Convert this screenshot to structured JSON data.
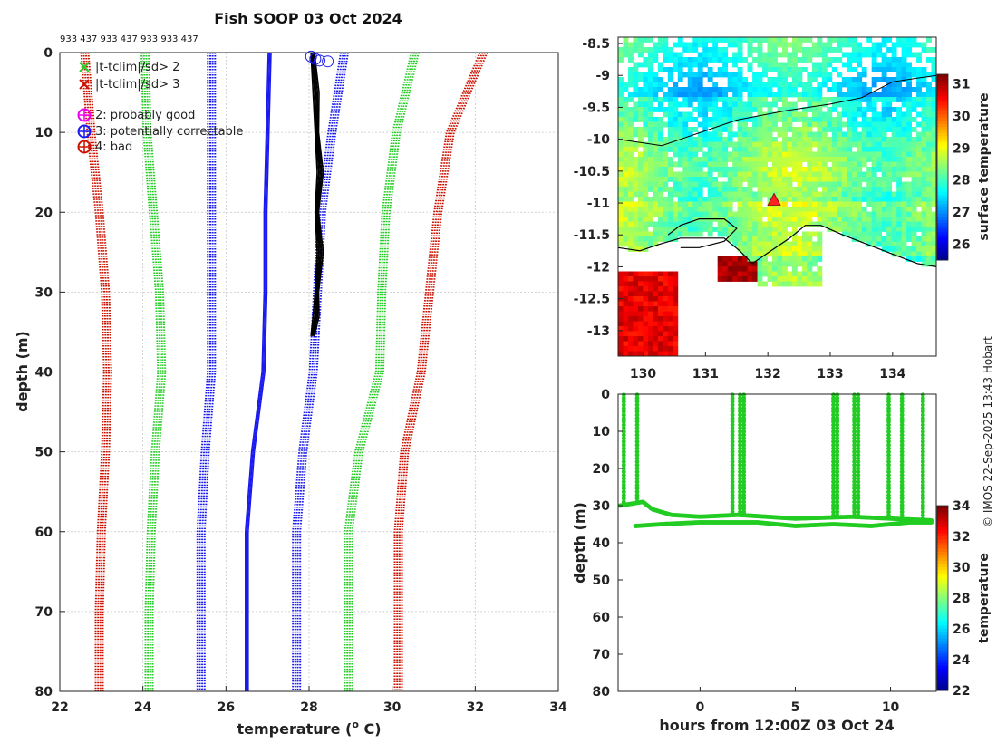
{
  "title": "Fish SOOP 03 Oct 2024",
  "ids_label": "933 437 933 437 933 933 437",
  "credit": "© IMOS 22-Sep-2025 13:43 Hobart",
  "colors": {
    "green": "#22cc22",
    "red": "#cc1100",
    "blue": "#1a1aee",
    "black": "#000000",
    "magenta": "#ee00ee"
  },
  "chart_data": [
    {
      "type": "line",
      "name": "profile",
      "xlabel_main": "temperature (",
      "xlabel_sup": "o",
      "xlabel_end": " C)",
      "ylabel": "depth (m)",
      "xlim": [
        22,
        34
      ],
      "ylim": [
        80,
        0
      ],
      "xticks": [
        "22",
        "24",
        "26",
        "28",
        "30",
        "32",
        "34"
      ],
      "yticks": [
        "0",
        "10",
        "20",
        "30",
        "40",
        "50",
        "60",
        "70",
        "80"
      ],
      "legend": [
        {
          "marker": "x",
          "color": "green",
          "text": "|t-tclim|/sd> 2"
        },
        {
          "marker": "x",
          "color": "red",
          "text": "|t-tclim|/sd> 3"
        },
        {
          "marker": "o",
          "color": "magenta",
          "text": "2: probably good"
        },
        {
          "marker": "o",
          "color": "blue",
          "text": "3: potentially correctable"
        },
        {
          "marker": "o",
          "color": "red",
          "text": "4: bad"
        }
      ],
      "series": [
        {
          "name": "clim-3sd-low",
          "color": "red",
          "style": "dotted",
          "depth": [
            0,
            10,
            20,
            30,
            40,
            50,
            60,
            70,
            80
          ],
          "temp": [
            22.6,
            22.75,
            22.95,
            23.1,
            23.15,
            23.1,
            23.0,
            22.95,
            22.95
          ]
        },
        {
          "name": "clim-2sd-low",
          "color": "green",
          "style": "dotted",
          "depth": [
            0,
            10,
            20,
            30,
            40,
            50,
            60,
            70,
            80
          ],
          "temp": [
            24.05,
            24.1,
            24.25,
            24.4,
            24.45,
            24.3,
            24.2,
            24.15,
            24.15
          ]
        },
        {
          "name": "clim-1sd-low",
          "color": "blue",
          "style": "dotted",
          "depth": [
            0,
            10,
            20,
            30,
            40,
            50,
            60,
            70,
            80
          ],
          "temp": [
            25.65,
            25.65,
            25.65,
            25.65,
            25.65,
            25.5,
            25.4,
            25.4,
            25.4
          ]
        },
        {
          "name": "clim-mean",
          "color": "blue",
          "style": "solid",
          "depth": [
            0,
            10,
            20,
            30,
            40,
            50,
            60,
            70,
            80
          ],
          "temp": [
            27.05,
            27.0,
            26.95,
            26.95,
            26.9,
            26.65,
            26.5,
            26.5,
            26.5
          ]
        },
        {
          "name": "clim-1sd-high",
          "color": "blue",
          "style": "dotted",
          "depth": [
            0,
            10,
            20,
            30,
            40,
            50,
            60,
            70,
            80
          ],
          "temp": [
            28.85,
            28.55,
            28.3,
            28.2,
            28.1,
            27.85,
            27.7,
            27.7,
            27.7
          ]
        },
        {
          "name": "clim-2sd-high",
          "color": "green",
          "style": "dotted",
          "depth": [
            0,
            10,
            20,
            30,
            40,
            50,
            60,
            70,
            80
          ],
          "temp": [
            30.55,
            30.1,
            29.85,
            29.75,
            29.7,
            29.2,
            28.95,
            28.95,
            28.95
          ]
        },
        {
          "name": "clim-3sd-high",
          "color": "red",
          "style": "dotted",
          "depth": [
            0,
            10,
            20,
            30,
            40,
            50,
            60,
            70,
            80
          ],
          "temp": [
            32.2,
            31.4,
            31.1,
            30.9,
            30.7,
            30.3,
            30.15,
            30.15,
            30.15
          ]
        },
        {
          "name": "observed",
          "color": "black",
          "style": "solid",
          "depth": [
            0,
            5,
            10,
            15,
            20,
            25,
            30,
            33,
            35.5
          ],
          "temp": [
            28.1,
            28.15,
            28.2,
            28.25,
            28.2,
            28.25,
            28.2,
            28.15,
            28.1
          ]
        }
      ],
      "flags": [
        {
          "temp": 28.05,
          "depth": 0.5
        },
        {
          "temp": 28.15,
          "depth": 0.8
        },
        {
          "temp": 28.25,
          "depth": 1.0
        },
        {
          "temp": 28.45,
          "depth": 1.1
        }
      ]
    },
    {
      "type": "heatmap",
      "name": "surface-temperature-map",
      "xlim": [
        129.6,
        134.7
      ],
      "ylim": [
        -13.4,
        -8.4
      ],
      "xticks": [
        "130",
        "131",
        "132",
        "133",
        "134"
      ],
      "yticks": [
        "-8.5",
        "-9",
        "-9.5",
        "-10",
        "-10.5",
        "-11",
        "-11.5",
        "-12",
        "-12.5",
        "-13"
      ],
      "colorbar_label": "surface temperature",
      "colorbar_range": [
        25.5,
        31.3
      ],
      "colorbar_ticks": [
        "26",
        "27",
        "28",
        "29",
        "30",
        "31"
      ],
      "position_marker": {
        "lon": 132.1,
        "lat": -10.95
      }
    },
    {
      "type": "scatter",
      "name": "depth-time",
      "xlabel": "hours from 12:00Z 03 Oct 24",
      "ylabel": "depth (m)",
      "xlim": [
        -4.3,
        12.4
      ],
      "ylim": [
        80,
        0
      ],
      "xticks": [
        "0",
        "5",
        "10"
      ],
      "yticks": [
        "0",
        "10",
        "20",
        "30",
        "40",
        "50",
        "60",
        "70",
        "80"
      ],
      "colorbar_label": "temperature",
      "colorbar_range": [
        22,
        34
      ],
      "colorbar_ticks": [
        "22",
        "24",
        "26",
        "28",
        "30",
        "32",
        "34"
      ],
      "casts": [
        -4.0,
        -3.3,
        1.7,
        2.1,
        2.3,
        7.0,
        7.2,
        8.1,
        8.3,
        9.9,
        10.6,
        11.7
      ],
      "bottom_line": {
        "hours": [
          -4.2,
          -3.0,
          -2.5,
          -1.5,
          0,
          2.0,
          5.0,
          8.0,
          10.0,
          12.2
        ],
        "depth": [
          30,
          29,
          31,
          32.5,
          33,
          32.5,
          33.5,
          33,
          33.5,
          34
        ]
      },
      "bottom_line_2": {
        "hours": [
          -3.4,
          -2.0,
          0,
          3.0,
          5.0,
          7.0,
          9.0,
          11.0,
          12.2
        ],
        "depth": [
          35.5,
          35,
          34.5,
          34.5,
          35.5,
          35,
          35.5,
          34.5,
          34.5
        ]
      }
    }
  ]
}
